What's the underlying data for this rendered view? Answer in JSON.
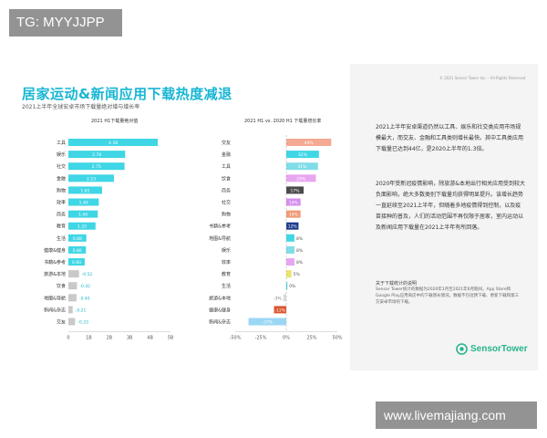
{
  "badge": "TG: MYYJJPP",
  "watermark": "www.livemajiang.com",
  "slide": {
    "heading": "居家运动&新闻应用下载热度减退",
    "subheading": "2021上半年全球安卓市场下载量绝对增与增长率"
  },
  "chart_data": [
    {
      "type": "bar",
      "orientation": "horizontal",
      "title": "2021 H1下载量绝对值",
      "categories": [
        "工具",
        "娱乐",
        "社交",
        "金融",
        "购物",
        "效率",
        "商务",
        "教育",
        "生活",
        "健康&健身",
        "书籍&参考",
        "旅游&本地",
        "饮食",
        "地图&导航",
        "新闻&杂志",
        "交友"
      ],
      "values": [
        4.38,
        2.78,
        2.75,
        2.23,
        1.65,
        1.49,
        1.44,
        1.33,
        0.88,
        0.86,
        0.8,
        -0.52,
        -0.42,
        -0.4,
        -0.21,
        -0.33
      ],
      "value_labels": [
        "4.38",
        "2.78",
        "2.75",
        "2.23",
        "1.65",
        "1.49",
        "1.44",
        "1.33",
        "0.88",
        "0.86",
        "0.80",
        "-0.52",
        "-0.42",
        "-0.40",
        "-0.21",
        "-0.33"
      ],
      "xticks": [
        "0",
        "1B",
        "2B",
        "3B",
        "4B",
        "5B"
      ],
      "xlim": [
        0,
        5
      ],
      "colors": {
        "positive": "#3fd6e6",
        "negative": "#c9c9c9",
        "negative_label": "#16b6c6"
      }
    },
    {
      "type": "bar",
      "orientation": "horizontal",
      "title": "2021 H1 vs. 2020 H1 下载量增长率",
      "categories": [
        "交友",
        "金融",
        "工具",
        "饮食",
        "商务",
        "社交",
        "购物",
        "书籍&参考",
        "地图&导航",
        "娱乐",
        "效率",
        "教育",
        "生活",
        "旅游&本地",
        "健康&健身",
        "新闻&杂志"
      ],
      "values": [
        44,
        32,
        31,
        29,
        17,
        14,
        14,
        12,
        8,
        8,
        8,
        5,
        0,
        -3,
        -12,
        -37
      ],
      "value_labels": [
        "44%",
        "32%",
        "31%",
        "29%",
        "17%",
        "14%",
        "14%",
        "12%",
        "8%",
        "8%",
        "8%",
        "5%",
        "0%",
        "-3%",
        "-12%",
        "-37%"
      ],
      "colors": [
        "#f4a992",
        "#3fd6e6",
        "#7fdde7",
        "#e8a6f1",
        "#4a4a4a",
        "#d58fec",
        "#f19b76",
        "#1e3d8f",
        "#3fd6e6",
        "#7fdde7",
        "#e8a6f1",
        "#ece36b",
        "#3fd6e6",
        "#dcdcdc",
        "#d9552e",
        "#9ad7f4"
      ],
      "xticks": [
        "-50%",
        "-25%",
        "0%",
        "25%",
        "50%"
      ],
      "xlim": [
        -50,
        50
      ]
    }
  ],
  "panel": {
    "header": "© 2021 Sensor Tower Inc. - All Rights Reserved",
    "para1": "2021上半年安卓渠道仍然以工具、娱乐和社交类应用市场规模最大，而交友、金融和工具类则增长最快。其中工具类应用下载量已达到44亿，是2020上半年的1.3倍。",
    "para2": "2020年受新冠疫情影响，除旅游&本地出行相关应用受到较大负面影响，绝大多数类别下载量均获得明显提升。该增长趋势一直延续至2021上半年，但随着多地疫情得到控制，以及疫苗接种的普及，人们的活动范围不再仅限于居家，室内运动以及新闻应用下载量在2021上半年有所回落。",
    "note_title": "关于下载统计的说明",
    "note": "Sensor Tower统计的数据为2020年1月至2021年6月期间，App Store和Google Play应用商店中的下载增长情况，数据不包括预下载、更新下载和第三方安卓市场的下载。",
    "logo": "SensorTower"
  }
}
